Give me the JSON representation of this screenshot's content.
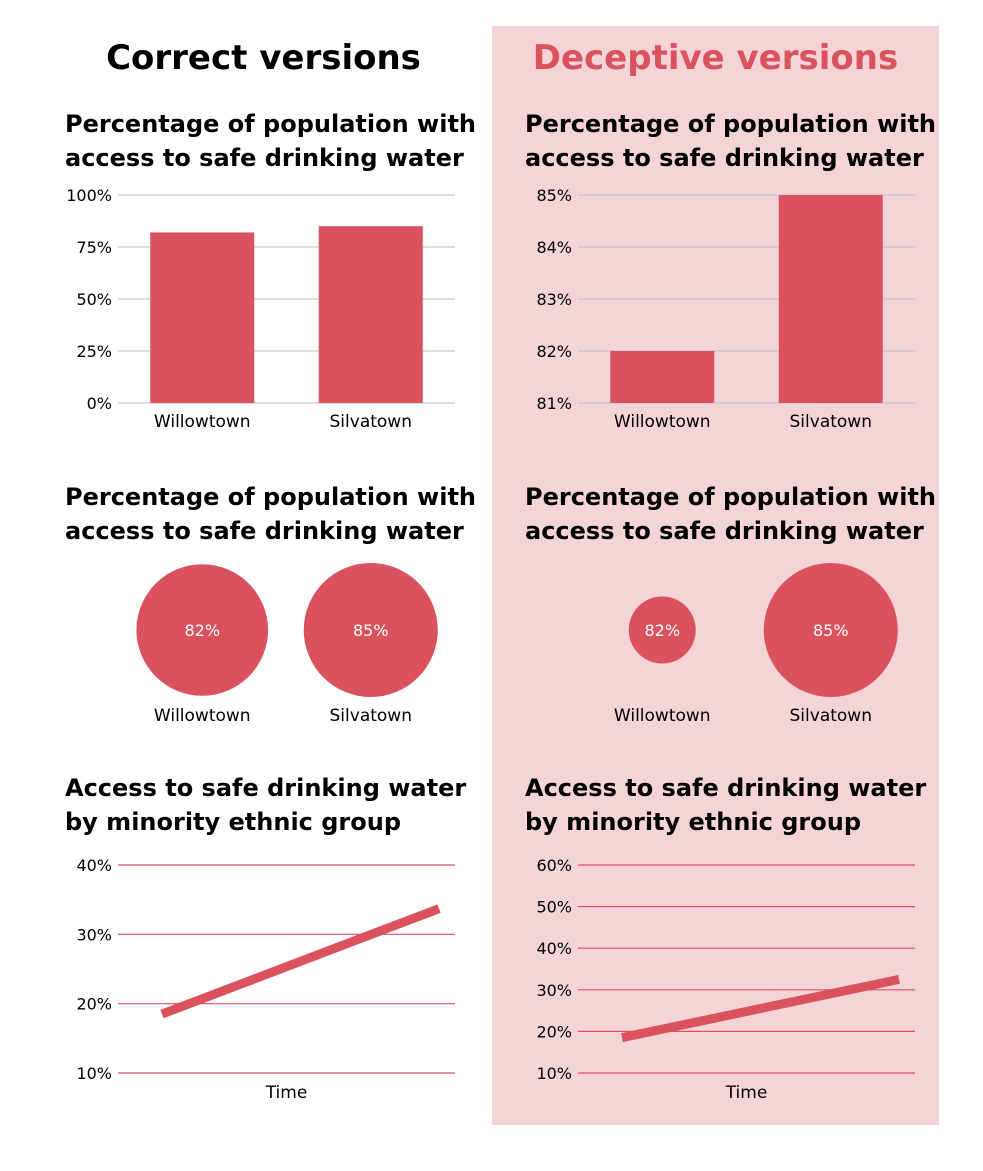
{
  "headings": {
    "correct": "Correct versions",
    "deceptive": "Deceptive versions"
  },
  "colors": {
    "bar": "#d9525e",
    "deceptive_bg": "#f4d4d7",
    "heading_deceptive": "#d9525e",
    "grid_bar": "#c7c7cc",
    "grid_line": "#d9525e"
  },
  "titles": {
    "water": {
      "line1": "Percentage of population with",
      "line2": "access to safe drinking water"
    },
    "ethnic": {
      "line1": "Access to safe drinking water",
      "line2": "by minority ethnic group"
    }
  },
  "chart_data": [
    {
      "id": "bar-correct",
      "type": "bar",
      "categories": [
        "Willowtown",
        "Silvatown"
      ],
      "values": [
        82,
        85
      ],
      "ylim": [
        0,
        100
      ],
      "yticks": [
        0,
        25,
        50,
        75,
        100
      ],
      "tick_format": "{v}%",
      "grid": true
    },
    {
      "id": "bar-deceptive",
      "type": "bar",
      "categories": [
        "Willowtown",
        "Silvatown"
      ],
      "values": [
        82,
        85
      ],
      "ylim": [
        81,
        85
      ],
      "yticks": [
        81,
        82,
        83,
        84,
        85
      ],
      "tick_format": "{v}%",
      "grid": true
    },
    {
      "id": "bubble-correct",
      "type": "bubble",
      "categories": [
        "Willowtown",
        "Silvatown"
      ],
      "values": [
        82,
        85
      ],
      "data_labels": [
        "82%",
        "85%"
      ],
      "area_baseline": 0
    },
    {
      "id": "bubble-deceptive",
      "type": "bubble",
      "categories": [
        "Willowtown",
        "Silvatown"
      ],
      "values": [
        82,
        85
      ],
      "data_labels": [
        "82%",
        "85%"
      ],
      "area_baseline": 81
    },
    {
      "id": "line-correct",
      "type": "line",
      "xlabel": "Time",
      "x": [
        0,
        1
      ],
      "y": [
        18.5,
        33.7
      ],
      "ylim": [
        10,
        40
      ],
      "yticks": [
        10,
        20,
        30,
        40
      ],
      "tick_format": "{v}%",
      "grid": true
    },
    {
      "id": "line-deceptive",
      "type": "line",
      "xlabel": "Time",
      "x": [
        0,
        1
      ],
      "y": [
        18.5,
        32.5
      ],
      "ylim": [
        10,
        60
      ],
      "yticks": [
        10,
        20,
        30,
        40,
        50,
        60
      ],
      "tick_format": "{v}%",
      "grid": true
    }
  ]
}
